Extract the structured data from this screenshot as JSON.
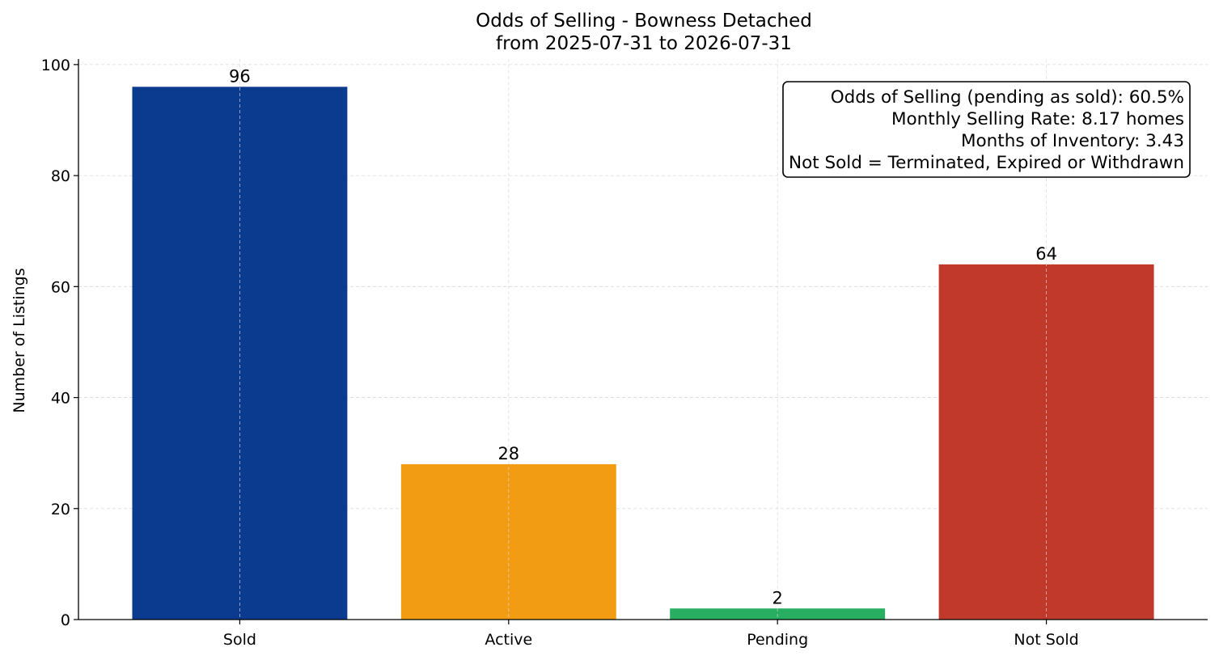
{
  "chart_data": {
    "type": "bar",
    "title": "Odds of Selling - Bowness Detached",
    "subtitle": "from 2025-07-31 to 2026-07-31",
    "xlabel": "",
    "ylabel": "Number of Listings",
    "categories": [
      "Sold",
      "Active",
      "Pending",
      "Not Sold"
    ],
    "values": [
      96,
      28,
      2,
      64
    ],
    "colors": [
      "#0b3b8f",
      "#f29c13",
      "#27ae60",
      "#c0392b"
    ],
    "ylim": [
      0,
      101
    ],
    "yticks": [
      0,
      20,
      40,
      60,
      80,
      100
    ],
    "grid": true,
    "stats_box": {
      "placement": "top-right",
      "lines": [
        "Odds of Selling (pending as sold): 60.5%",
        "Monthly Selling Rate: 8.17 homes",
        "Months of Inventory: 3.43",
        "Not Sold = Terminated, Expired or Withdrawn"
      ]
    }
  }
}
